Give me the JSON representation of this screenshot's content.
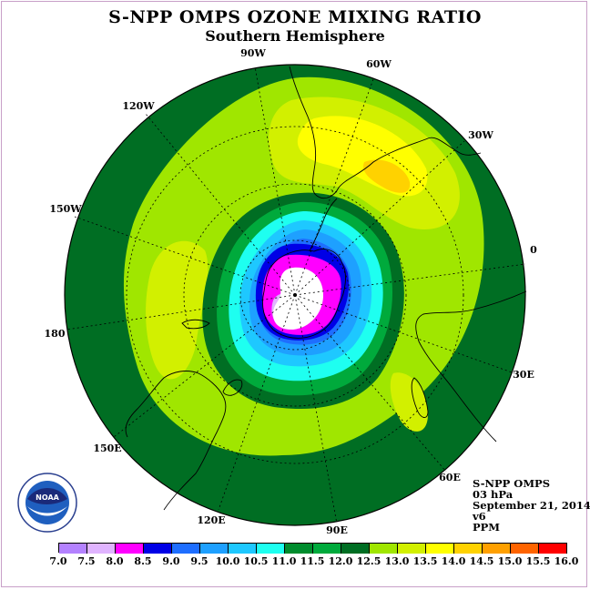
{
  "title": "S-NPP OMPS OZONE MIXING RATIO",
  "subtitle": "Southern Hemisphere",
  "info": {
    "instrument": "S-NPP OMPS",
    "level": "03 hPa",
    "date": "September 21, 2014",
    "version": "v6",
    "units": "PPM"
  },
  "logo": {
    "text": "NOAA",
    "ring_text": "NATIONAL OCEANIC AND ATMOSPHERIC ADMINISTRATION"
  },
  "longitude_labels": [
    "90W",
    "60W",
    "30W",
    "0",
    "30E",
    "60E",
    "90E",
    "120E",
    "150E",
    "180",
    "150W",
    "120W"
  ],
  "colorbar": {
    "ticks": [
      "7.0",
      "7.5",
      "8.0",
      "8.5",
      "9.0",
      "9.5",
      "10.0",
      "10.5",
      "11.0",
      "11.5",
      "12.0",
      "12.5",
      "13.0",
      "13.5",
      "14.0",
      "14.5",
      "15.0",
      "15.5",
      "16.0"
    ],
    "colors": [
      "#b482ff",
      "#e0b4ff",
      "#ff00ff",
      "#0000e6",
      "#1e6eff",
      "#1ea0ff",
      "#1ec8ff",
      "#1efff0",
      "#008c2d",
      "#00aa3c",
      "#006e23",
      "#a0e600",
      "#d2f000",
      "#ffff00",
      "#ffd200",
      "#ffa000",
      "#ff6400",
      "#ff0000",
      "#8c5a3c"
    ]
  }
}
